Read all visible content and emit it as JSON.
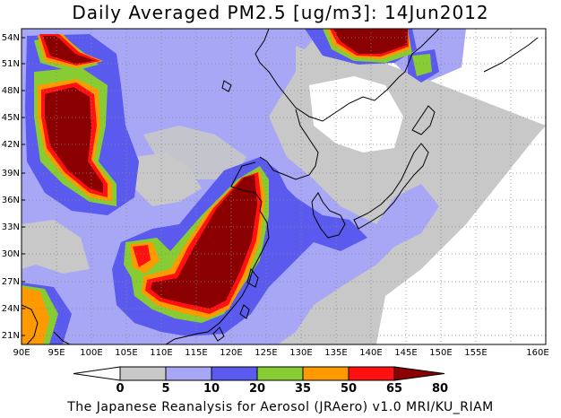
{
  "title": "Daily Averaged PM2.5 [ug/m3]: 14Jun2012",
  "map": {
    "lat_labels": [
      "54N",
      "51N",
      "48N",
      "45N",
      "42N",
      "39N",
      "36N",
      "33N",
      "30N",
      "27N",
      "24N",
      "21N"
    ],
    "lon_labels": [
      "90E",
      "95E",
      "100E",
      "105E",
      "110E",
      "115E",
      "120E",
      "125E",
      "130E",
      "135E",
      "140E",
      "145E",
      "150E",
      "155E",
      "160E"
    ]
  },
  "legend": {
    "labels": [
      "0",
      "5",
      "10",
      "20",
      "35",
      "50",
      "65",
      "80"
    ],
    "colors": [
      "#ffffff",
      "#c8c8c8",
      "#a7a7f5",
      "#5a5aee",
      "#88cc33",
      "#ff9900",
      "#ff1111",
      "#8b0000"
    ]
  },
  "credit": "The Japanese Reanalysis for Aerosol (JRAero) v1.0 MRI/KU_RIAM"
}
